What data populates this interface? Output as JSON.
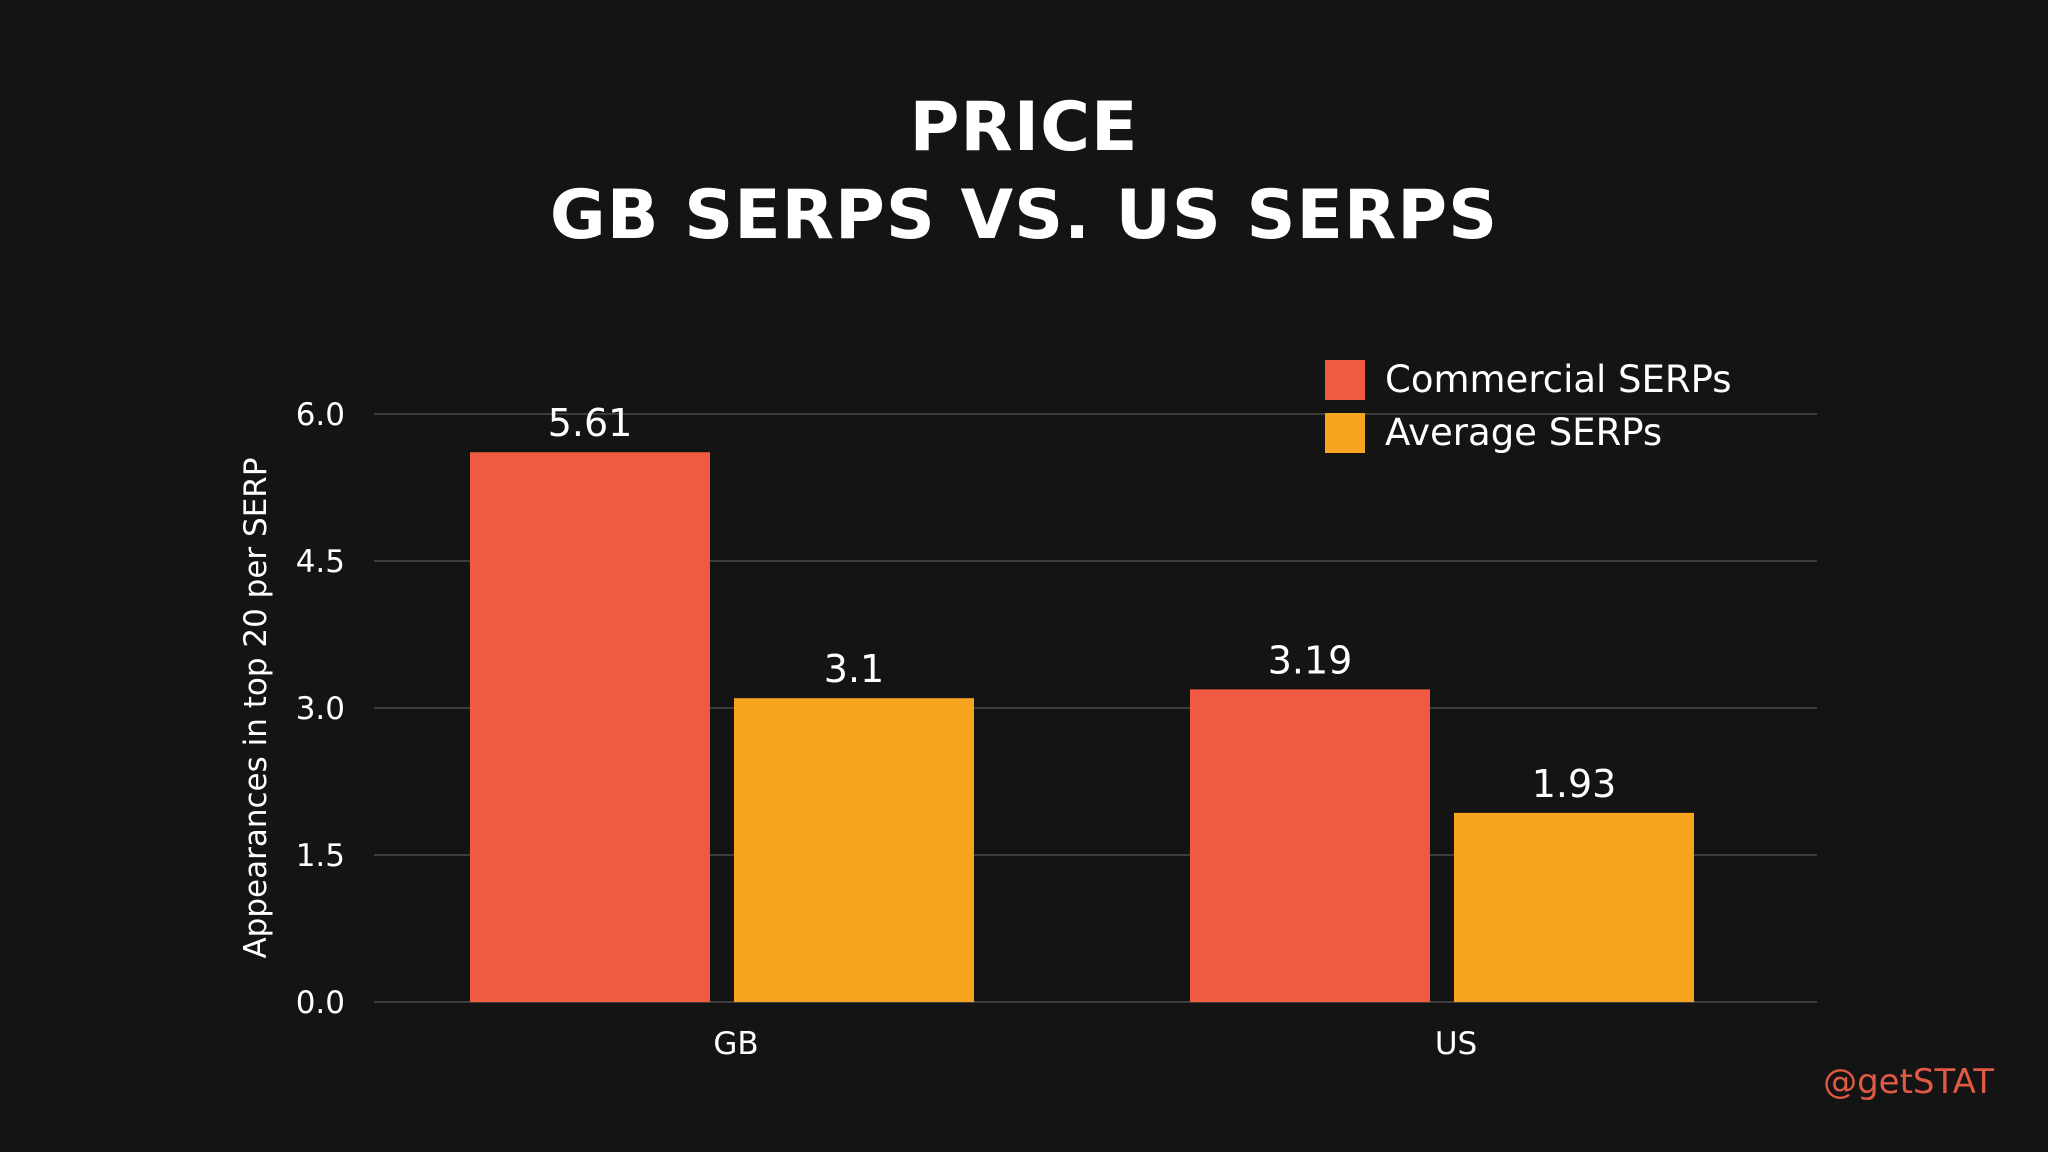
{
  "slide": {
    "title_line1": "PRICE",
    "title_line2": "GB SERPS VS. US SERPS",
    "credit": "@getSTAT",
    "credit_color": "#e05a44",
    "background": "#141414"
  },
  "chart_data": {
    "type": "bar",
    "categories": [
      "GB",
      "US"
    ],
    "series": [
      {
        "name": "Commercial SERPs",
        "values": [
          5.61,
          3.19
        ],
        "labels": [
          "5.61",
          "3.19"
        ],
        "color": "#ef5b41"
      },
      {
        "name": "Average SERPs",
        "values": [
          3.1,
          1.93
        ],
        "labels": [
          "3.1",
          "1.93"
        ],
        "color": "#f7a520"
      }
    ],
    "ylabel": "Appearances in top 20 per SERP",
    "xlabel": "",
    "ylim": [
      0,
      6
    ],
    "yticks": [
      0,
      1.5,
      3,
      4.5,
      6
    ],
    "ytick_labels": [
      "0.0",
      "1.5",
      "3.0",
      "4.5",
      "6.0"
    ],
    "grid": true,
    "legend_position": "top-right"
  }
}
